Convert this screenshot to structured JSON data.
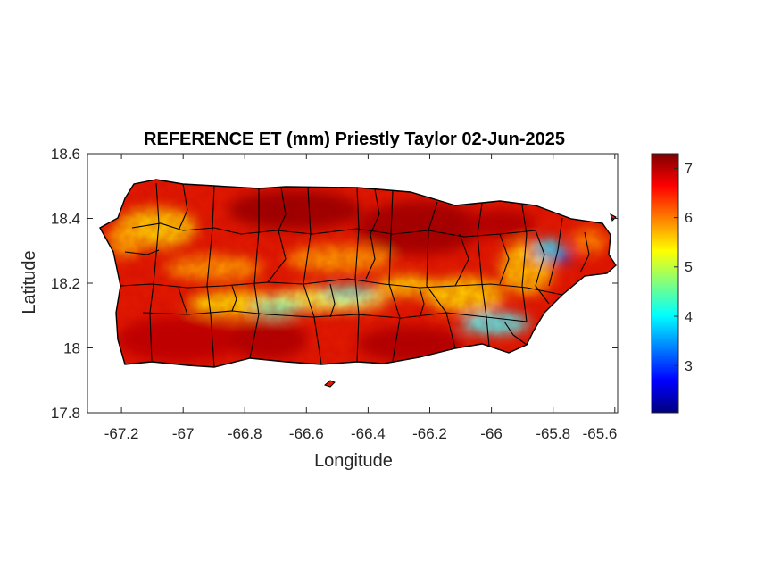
{
  "figure": {
    "title": "REFERENCE ET (mm) Priestly Taylor 02-Jun-2025",
    "xlabel": "Longitude",
    "ylabel": "Latitude"
  },
  "map": {
    "region": "Puerto Rico",
    "variable": "Reference evapotranspiration",
    "units": "mm",
    "xlim": [
      -67.3,
      -65.58
    ],
    "ylim": [
      17.8,
      18.6
    ],
    "xticks": [
      -67.2,
      -67,
      -66.8,
      -66.6,
      -66.4,
      -66.2,
      -66,
      -65.8,
      -65.6
    ],
    "xtick_labels": [
      "-67.2",
      "-67",
      "-66.8",
      "-66.6",
      "-66.4",
      "-66.2",
      "-66",
      "-65.8",
      "-65.6"
    ],
    "yticks": [
      18.6,
      18.4,
      18.2,
      18,
      17.8
    ],
    "ytick_labels": [
      "18.6",
      "18.4",
      "18.2",
      "18",
      "17.8"
    ],
    "colormap": "jet",
    "border_color": "#000000"
  },
  "colorbar": {
    "range": [
      2.1,
      7.35
    ],
    "ticks": [
      3,
      4,
      5,
      6,
      7
    ],
    "tick_labels": [
      "3",
      "4",
      "5",
      "6",
      "7"
    ],
    "colors": [
      "#00007f",
      "#0000ff",
      "#007fff",
      "#00ffff",
      "#7fff7f",
      "#ffff00",
      "#ff7f00",
      "#ff0000",
      "#7f0000"
    ]
  }
}
